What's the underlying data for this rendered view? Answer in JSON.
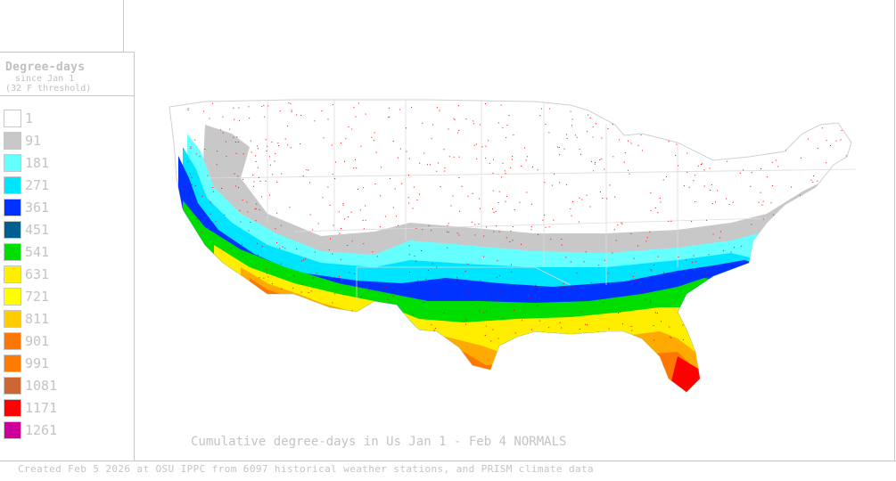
{
  "legend": {
    "title": "Degree-days",
    "subtitle_1": "since Jan 1",
    "subtitle_2": "(32 F threshold)",
    "items": [
      {
        "value": "1",
        "color": "#ffffff"
      },
      {
        "value": "91",
        "color": "#c8c8c8"
      },
      {
        "value": "181",
        "color": "#66ffff"
      },
      {
        "value": "271",
        "color": "#00e5ff"
      },
      {
        "value": "361",
        "color": "#0033ff"
      },
      {
        "value": "451",
        "color": "#005f8f"
      },
      {
        "value": "541",
        "color": "#00dd00"
      },
      {
        "value": "631",
        "color": "#ffee00"
      },
      {
        "value": "721",
        "color": "#ffff00"
      },
      {
        "value": "811",
        "color": "#ffcc00"
      },
      {
        "value": "901",
        "color": "#ff7700"
      },
      {
        "value": "991",
        "color": "#ff7a00"
      },
      {
        "value": "1081",
        "color": "#cc6633"
      },
      {
        "value": "1171",
        "color": "#ff0000"
      },
      {
        "value": "1261",
        "color": "#cc0099"
      }
    ]
  },
  "map": {
    "title": "Cumulative degree-days in Us  Jan 1 - Feb 4 NORMALS",
    "station_color": "#ff0000"
  },
  "footer": {
    "credit": "Created Feb 5 2026 at OSU IPPC from 6097 historical weather stations, and PRISM climate data"
  }
}
